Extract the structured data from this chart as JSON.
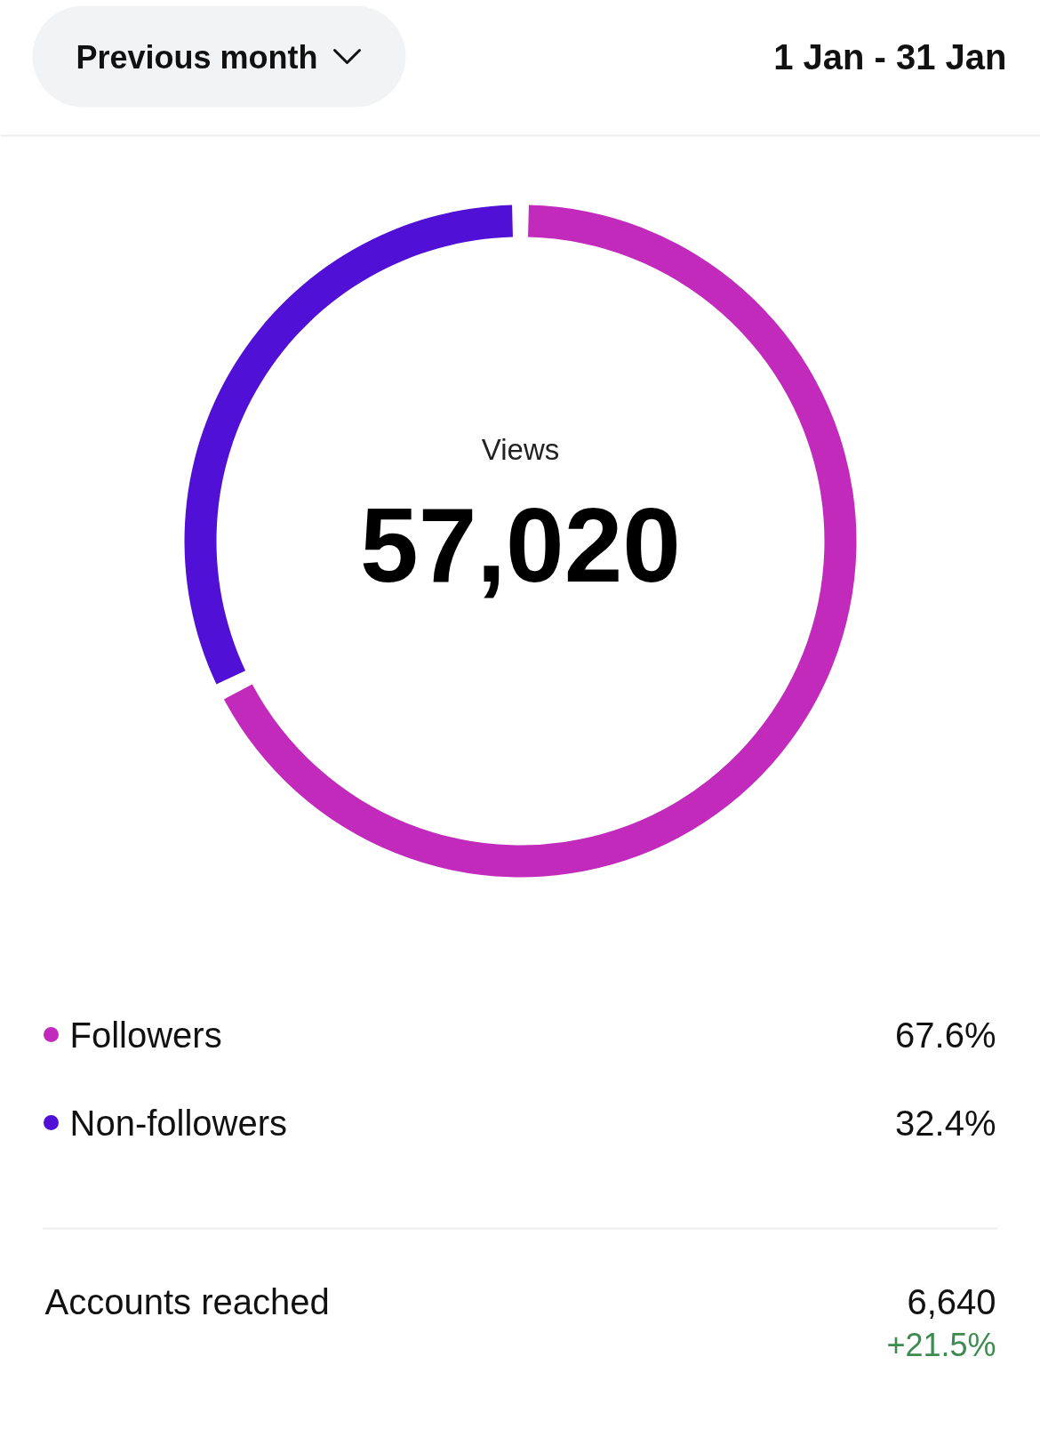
{
  "chart_data": {
    "type": "donut",
    "title": "Views",
    "subtitle": "57,020",
    "categories": [
      "Followers",
      "Non-followers"
    ],
    "values": [
      67.6,
      32.4
    ],
    "colors": [
      "#c12abb",
      "#5010d6"
    ],
    "value_labels": [
      "67.6%",
      "32.4%"
    ],
    "legend": "bottom",
    "annotations": [
      "Previous month",
      "1 Jan - 31 Jan",
      "Accounts reached",
      "6,640",
      "+21.5%"
    ]
  }
}
